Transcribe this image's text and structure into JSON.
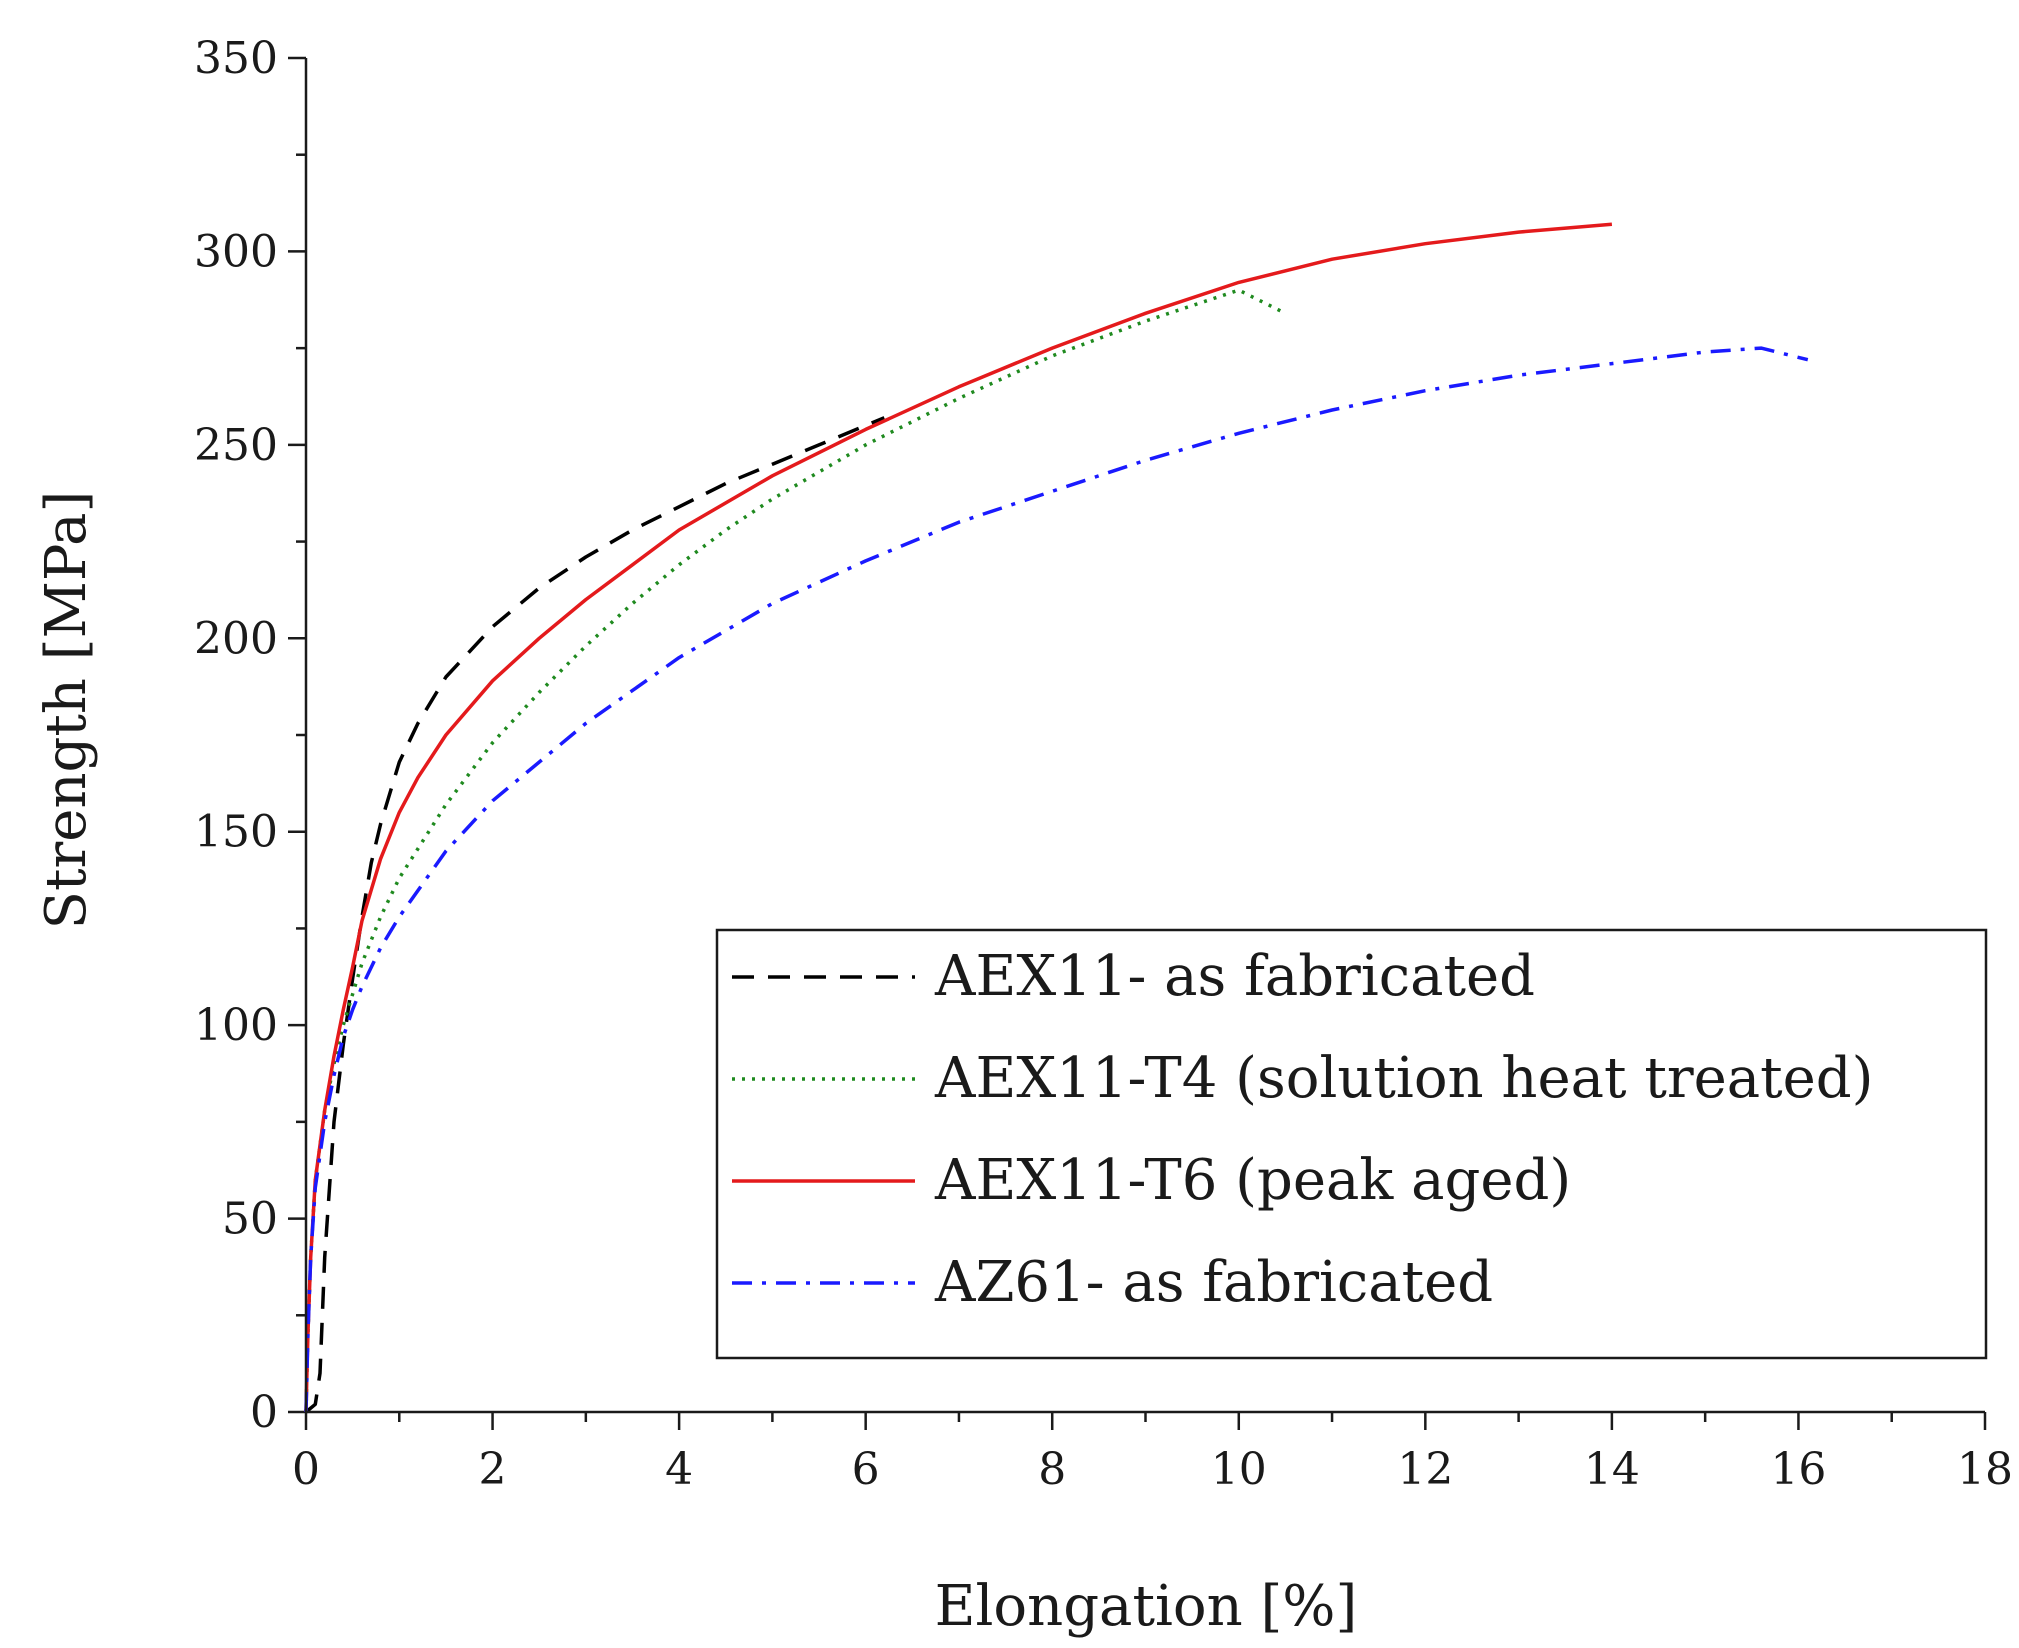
{
  "chart_data": {
    "type": "line",
    "title": "",
    "xlabel": "Elongation [%]",
    "ylabel": "Strength [MPa]",
    "xlim": [
      0,
      18
    ],
    "ylim": [
      0,
      350
    ],
    "xticks": [
      0,
      2,
      4,
      6,
      8,
      10,
      12,
      14,
      16,
      18
    ],
    "yticks": [
      0,
      50,
      100,
      150,
      200,
      250,
      300,
      350
    ],
    "xtick_labels": [
      "0",
      "2",
      "4",
      "6",
      "8",
      "10",
      "12",
      "14",
      "16",
      "18"
    ],
    "ytick_labels": [
      "0",
      "50",
      "100",
      "150",
      "200",
      "250",
      "300",
      "350"
    ],
    "grid": false,
    "legend_position": "bottom-right",
    "series": [
      {
        "name": "AEX11- as fabricated",
        "color": "#000000",
        "style": "dashed",
        "x": [
          0,
          0.1,
          0.15,
          0.2,
          0.3,
          0.4,
          0.5,
          0.6,
          0.7,
          0.8,
          1.0,
          1.2,
          1.5,
          2.0,
          2.5,
          3.0,
          3.5,
          4.0,
          4.5,
          5.0,
          5.5,
          6.0,
          6.2
        ],
        "y": [
          0,
          2,
          10,
          40,
          75,
          95,
          112,
          128,
          142,
          152,
          168,
          178,
          190,
          203,
          213,
          221,
          228,
          234,
          240,
          245,
          250,
          255,
          257
        ]
      },
      {
        "name": "AEX11-T4 (solution heat treated)",
        "color": "#1f8a1f",
        "style": "dotted",
        "x": [
          0,
          0.02,
          0.05,
          0.1,
          0.2,
          0.3,
          0.4,
          0.5,
          0.6,
          0.8,
          1.0,
          1.5,
          2.0,
          2.5,
          3.0,
          3.5,
          4.0,
          4.5,
          5.0,
          6.0,
          7.0,
          8.0,
          9.0,
          10.0,
          10.5
        ],
        "y": [
          0,
          20,
          40,
          60,
          78,
          90,
          100,
          108,
          116,
          128,
          138,
          157,
          173,
          186,
          198,
          209,
          219,
          228,
          236,
          250,
          262,
          273,
          282,
          290,
          284
        ]
      },
      {
        "name": "AEX11-T6 (peak aged)",
        "color": "#e41a1c",
        "style": "solid",
        "x": [
          0,
          0.02,
          0.05,
          0.1,
          0.2,
          0.3,
          0.4,
          0.5,
          0.6,
          0.8,
          1.0,
          1.2,
          1.5,
          2.0,
          2.5,
          3.0,
          3.5,
          4.0,
          5.0,
          6.0,
          7.0,
          8.0,
          9.0,
          10.0,
          11.0,
          12.0,
          13.0,
          14.0
        ],
        "y": [
          0,
          20,
          40,
          60,
          78,
          92,
          104,
          115,
          127,
          143,
          155,
          164,
          175,
          189,
          200,
          210,
          219,
          228,
          242,
          254,
          265,
          275,
          284,
          292,
          298,
          302,
          305,
          307
        ]
      },
      {
        "name": "AZ61- as fabricated",
        "color": "#1a1aff",
        "style": "dashdot",
        "x": [
          0,
          0.02,
          0.05,
          0.1,
          0.2,
          0.3,
          0.4,
          0.5,
          0.6,
          0.8,
          1.0,
          1.5,
          2.0,
          3.0,
          4.0,
          5.0,
          6.0,
          7.0,
          8.0,
          9.0,
          10.0,
          11.0,
          12.0,
          13.0,
          14.0,
          15.0,
          15.6,
          16.1
        ],
        "y": [
          0,
          20,
          40,
          58,
          75,
          87,
          97,
          104,
          110,
          120,
          128,
          145,
          158,
          178,
          195,
          209,
          220,
          230,
          238,
          246,
          253,
          259,
          264,
          268,
          271,
          274,
          275,
          272
        ]
      }
    ]
  }
}
